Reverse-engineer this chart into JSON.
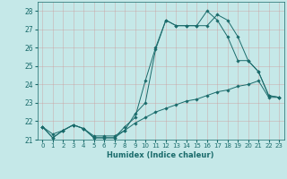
{
  "xlabel": "Humidex (Indice chaleur)",
  "background_color": "#c5e8e8",
  "grid_color_major": "#b0b0b0",
  "grid_color_minor": "#d8d8d8",
  "line_color": "#1a6b6b",
  "xlim": [
    -0.5,
    23.5
  ],
  "ylim": [
    21.0,
    28.5
  ],
  "xticks": [
    0,
    1,
    2,
    3,
    4,
    5,
    6,
    7,
    8,
    9,
    10,
    11,
    12,
    13,
    14,
    15,
    16,
    17,
    18,
    19,
    20,
    21,
    22,
    23
  ],
  "yticks": [
    21,
    22,
    23,
    24,
    25,
    26,
    27,
    28
  ],
  "series": [
    {
      "x": [
        0,
        1,
        2,
        3,
        4,
        5,
        6,
        7,
        8,
        9,
        10,
        11,
        12,
        13,
        14,
        15,
        16,
        17,
        18,
        19,
        20,
        21,
        22,
        23
      ],
      "y": [
        21.7,
        21.1,
        21.5,
        21.8,
        21.6,
        21.1,
        21.1,
        21.1,
        21.5,
        22.4,
        23.0,
        25.9,
        27.5,
        27.2,
        27.2,
        27.2,
        27.2,
        27.8,
        27.5,
        26.6,
        25.3,
        24.7,
        23.4,
        23.3
      ]
    },
    {
      "x": [
        0,
        1,
        2,
        3,
        4,
        5,
        6,
        7,
        8,
        9,
        10,
        11,
        12,
        13,
        14,
        15,
        16,
        17,
        18,
        19,
        20,
        21,
        22,
        23
      ],
      "y": [
        21.7,
        21.1,
        21.5,
        21.8,
        21.6,
        21.1,
        21.1,
        21.1,
        21.7,
        22.2,
        24.2,
        26.0,
        27.5,
        27.2,
        27.2,
        27.2,
        28.0,
        27.5,
        26.6,
        25.3,
        25.3,
        24.7,
        23.4,
        23.3
      ]
    },
    {
      "x": [
        0,
        1,
        2,
        3,
        4,
        5,
        6,
        7,
        8,
        9,
        10,
        11,
        12,
        13,
        14,
        15,
        16,
        17,
        18,
        19,
        20,
        21,
        22,
        23
      ],
      "y": [
        21.7,
        21.3,
        21.5,
        21.8,
        21.6,
        21.2,
        21.2,
        21.2,
        21.5,
        21.9,
        22.2,
        22.5,
        22.7,
        22.9,
        23.1,
        23.2,
        23.4,
        23.6,
        23.7,
        23.9,
        24.0,
        24.2,
        23.3,
        23.3
      ]
    }
  ]
}
